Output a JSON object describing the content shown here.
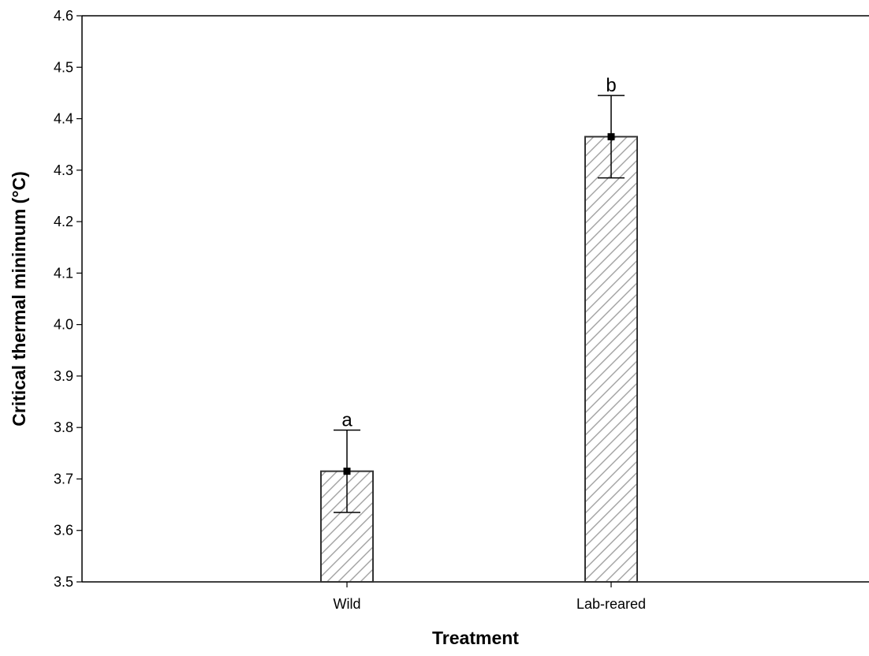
{
  "chart_data": {
    "type": "bar",
    "title": "",
    "xlabel": "Treatment",
    "ylabel": "Critical thermal minimum (°C)",
    "categories": [
      "Wild",
      "Lab-reared"
    ],
    "series": [
      {
        "values": [
          3.715,
          4.365
        ],
        "error_low": [
          3.635,
          4.285
        ],
        "error_high": [
          3.795,
          4.445
        ],
        "annotations": [
          "a",
          "b"
        ]
      }
    ],
    "ylim": [
      3.5,
      4.6
    ],
    "yticks": [
      "3.5",
      "3.6",
      "3.7",
      "3.8",
      "3.9",
      "4.0",
      "4.1",
      "4.2",
      "4.3",
      "4.4",
      "4.5",
      "4.6"
    ],
    "bar_fill": "hatched",
    "grid": false,
    "legend": "none",
    "colors": {
      "bar_edge": "#333333",
      "hatch": "#999999",
      "axis": "#000000"
    }
  }
}
